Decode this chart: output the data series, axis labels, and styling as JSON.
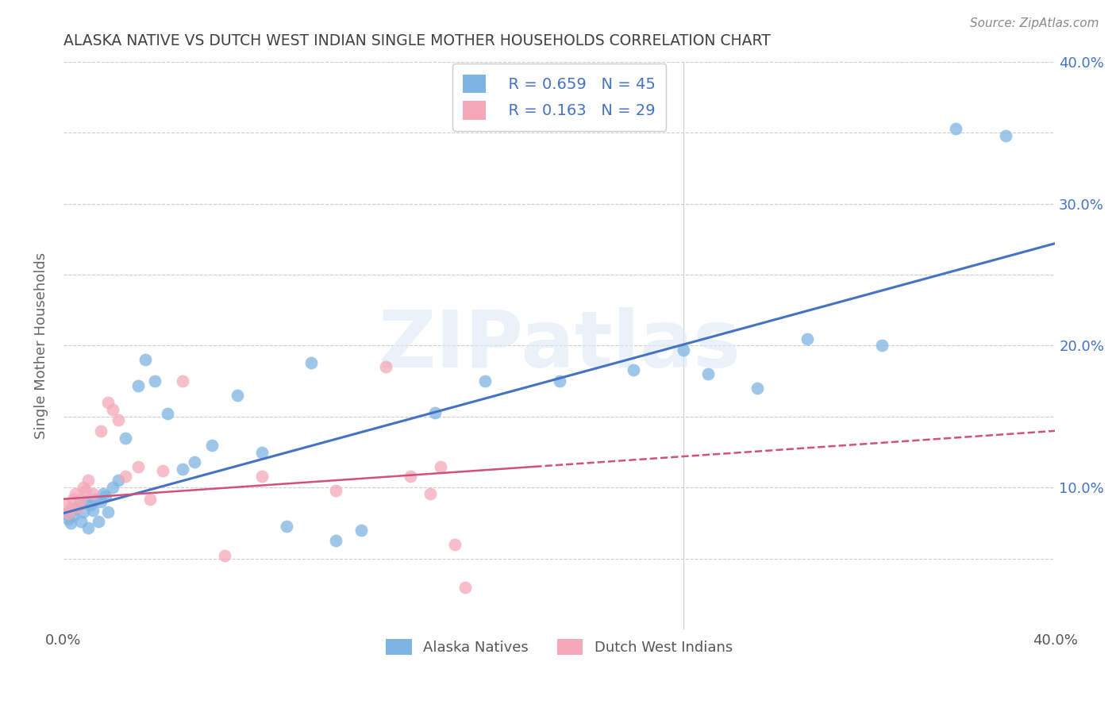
{
  "title": "ALASKA NATIVE VS DUTCH WEST INDIAN SINGLE MOTHER HOUSEHOLDS CORRELATION CHART",
  "source": "Source: ZipAtlas.com",
  "ylabel": "Single Mother Households",
  "xlim": [
    0,
    0.4
  ],
  "ylim": [
    0,
    0.4
  ],
  "background_color": "#ffffff",
  "watermark_text": "ZIPatlas",
  "color_blue": "#7EB4E2",
  "color_pink": "#F4A8B8",
  "line_blue": "#4472C4",
  "line_pink": "#D05080",
  "title_color": "#404040",
  "label_color": "#4472C4",
  "legend_r1": "R = 0.659",
  "legend_n1": "N = 45",
  "legend_r2": "R = 0.163",
  "legend_n2": "N = 29",
  "blue_line_x0": 0.0,
  "blue_line_y0": 0.082,
  "blue_line_x1": 0.4,
  "blue_line_y1": 0.272,
  "pink_line_x0": 0.0,
  "pink_line_y0": 0.092,
  "pink_line_x1": 0.4,
  "pink_line_y1": 0.14,
  "alaska_x": [
    0.001,
    0.002,
    0.003,
    0.004,
    0.005,
    0.006,
    0.007,
    0.008,
    0.009,
    0.01,
    0.011,
    0.012,
    0.013,
    0.014,
    0.015,
    0.016,
    0.017,
    0.018,
    0.02,
    0.022,
    0.025,
    0.03,
    0.033,
    0.037,
    0.042,
    0.048,
    0.053,
    0.06,
    0.07,
    0.08,
    0.09,
    0.1,
    0.11,
    0.12,
    0.15,
    0.17,
    0.2,
    0.23,
    0.25,
    0.26,
    0.28,
    0.3,
    0.33,
    0.36,
    0.38
  ],
  "alaska_y": [
    0.082,
    0.078,
    0.075,
    0.08,
    0.085,
    0.088,
    0.076,
    0.083,
    0.09,
    0.072,
    0.088,
    0.084,
    0.092,
    0.076,
    0.09,
    0.096,
    0.094,
    0.083,
    0.1,
    0.105,
    0.135,
    0.172,
    0.19,
    0.175,
    0.152,
    0.113,
    0.118,
    0.13,
    0.165,
    0.125,
    0.073,
    0.188,
    0.063,
    0.07,
    0.153,
    0.175,
    0.175,
    0.183,
    0.197,
    0.18,
    0.17,
    0.205,
    0.2,
    0.353,
    0.348
  ],
  "dutch_x": [
    0.001,
    0.002,
    0.003,
    0.004,
    0.005,
    0.006,
    0.007,
    0.008,
    0.009,
    0.01,
    0.012,
    0.015,
    0.018,
    0.02,
    0.022,
    0.025,
    0.03,
    0.035,
    0.04,
    0.048,
    0.065,
    0.08,
    0.11,
    0.13,
    0.14,
    0.148,
    0.152,
    0.158,
    0.162
  ],
  "dutch_y": [
    0.088,
    0.082,
    0.085,
    0.092,
    0.096,
    0.086,
    0.092,
    0.1,
    0.098,
    0.105,
    0.096,
    0.14,
    0.16,
    0.155,
    0.148,
    0.108,
    0.115,
    0.092,
    0.112,
    0.175,
    0.052,
    0.108,
    0.098,
    0.185,
    0.108,
    0.096,
    0.115,
    0.06,
    0.03
  ]
}
